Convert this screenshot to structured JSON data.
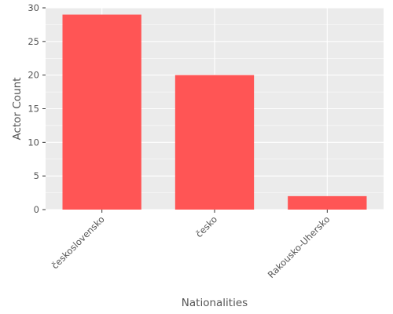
{
  "chart_data": {
    "type": "bar",
    "title": "",
    "xlabel": "Nationalities",
    "ylabel": "Actor Count",
    "categories": [
      "československo",
      "česko",
      "Rakousko-Uhersko"
    ],
    "series": [
      {
        "values": [
          29,
          20,
          2
        ]
      }
    ],
    "ylim": [
      0,
      30
    ],
    "yticks": [
      0,
      5,
      10,
      15,
      20,
      25,
      30
    ],
    "grid": true,
    "legend": "none",
    "colors": {
      "bar": "#FF5555",
      "panel_background": "#EBEBEB",
      "grid": "#FFFFFF",
      "text": "#555555"
    }
  }
}
